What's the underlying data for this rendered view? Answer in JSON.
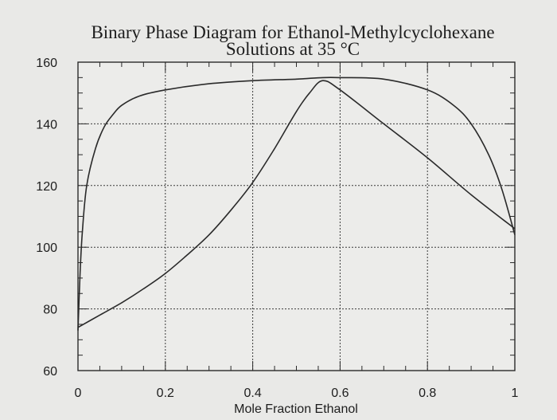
{
  "chart_data": {
    "type": "line",
    "title": "Binary Phase Diagram for Ethanol-Methylcyclohexane",
    "subtitle": "Solutions at 35 °C",
    "xlabel": "Mole Fraction Ethanol",
    "ylabel": "",
    "xlim": [
      0,
      1
    ],
    "ylim": [
      60,
      160
    ],
    "x_ticks": [
      0,
      0.2,
      0.4,
      0.6,
      0.8,
      1
    ],
    "x_tick_labels": [
      "0",
      "0.2",
      "0.4",
      "0.6",
      "0.8",
      "1"
    ],
    "y_ticks": [
      60,
      80,
      100,
      120,
      140,
      160
    ],
    "y_tick_labels": [
      "60",
      "80",
      "100",
      "120",
      "140",
      "160"
    ],
    "grid": true,
    "series": [
      {
        "x": [
          0,
          0.005,
          0.01,
          0.02,
          0.04,
          0.06,
          0.08,
          0.1,
          0.14,
          0.2,
          0.3,
          0.4,
          0.5,
          0.56,
          0.6,
          0.7,
          0.8,
          0.86,
          0.9,
          0.94,
          0.97,
          1.0
        ],
        "y": [
          73,
          92,
          105,
          120,
          132,
          139,
          143,
          146,
          149,
          151,
          153,
          154,
          154.5,
          155,
          155,
          154.5,
          151,
          146,
          140,
          130,
          119,
          104
        ]
      },
      {
        "x": [
          0,
          0.05,
          0.1,
          0.15,
          0.2,
          0.25,
          0.3,
          0.35,
          0.4,
          0.45,
          0.5,
          0.53,
          0.56,
          0.6,
          0.7,
          0.8,
          0.9,
          1.0
        ],
        "y": [
          74,
          78,
          82,
          86.5,
          91.5,
          97.5,
          104,
          112,
          121,
          132,
          144,
          150,
          154,
          151,
          140,
          129,
          117,
          106
        ]
      }
    ]
  }
}
